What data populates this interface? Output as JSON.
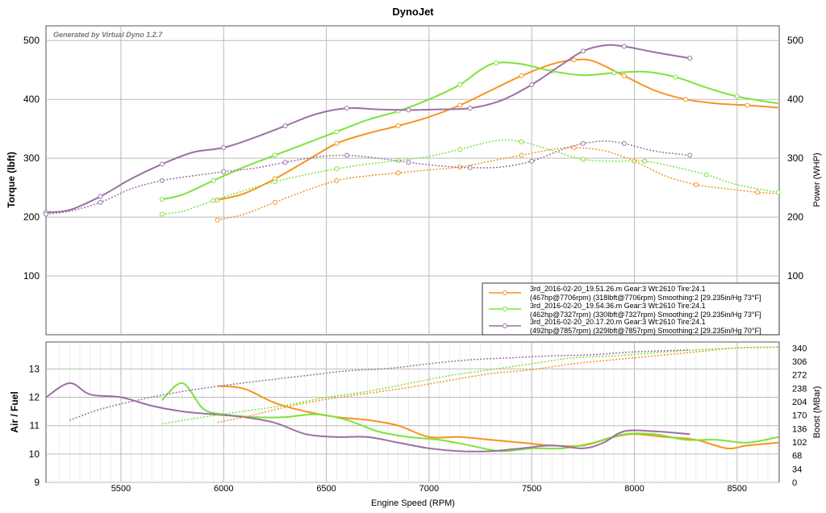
{
  "chart_data": [
    {
      "type": "line",
      "title": "DynoJet",
      "watermark": "Generated by Virtual Dyno 1.2.7",
      "xlabel": "Engine Speed (RPM)",
      "ylabel": "Torque (lbft)",
      "y2label": "Power (WHP)",
      "xlim": [
        5135,
        8705
      ],
      "ylim": [
        0,
        525
      ],
      "xticks": [
        5500,
        6000,
        6500,
        7000,
        7500,
        8000,
        8500
      ],
      "yticks": [
        100,
        200,
        300,
        400,
        500
      ],
      "legend": [
        {
          "line1": "3rd_2016-02-20_19.51.26.m Gear:3 Wt:2610 Tire:24.1",
          "line2": "(467hp@7706rpm) (318lbft@7706rpm) Smoothing:2 [29.235in/Hg 73°F]",
          "color": "#f7931e"
        },
        {
          "line1": "3rd_2016-02-20_19.54.36.m Gear:3 Wt:2610 Tire:24.1",
          "line2": "(462hp@7327rpm) (330lbft@7327rpm) Smoothing:2 [29.235in/Hg 73°F]",
          "color": "#7ee23a"
        },
        {
          "line1": "3rd_2016-02-20_20.17.20.m Gear:3 Wt:2610 Tire:24.1",
          "line2": "(492hp@7857rpm) (329lbft@7857rpm) Smoothing:2 [29.235in/Hg 70°F]",
          "color": "#9b6fa6"
        }
      ],
      "series": [
        {
          "name": "Run 1 Power",
          "color": "#f7931e",
          "dash": false,
          "points": [
            [
              5970,
              229
            ],
            [
              6100,
              240
            ],
            [
              6250,
              265
            ],
            [
              6400,
              295
            ],
            [
              6550,
              325
            ],
            [
              6700,
              342
            ],
            [
              6850,
              355
            ],
            [
              7000,
              370
            ],
            [
              7150,
              390
            ],
            [
              7300,
              415
            ],
            [
              7450,
              440
            ],
            [
              7600,
              460
            ],
            [
              7706,
              467
            ],
            [
              7800,
              465
            ],
            [
              7950,
              440
            ],
            [
              8100,
              415
            ],
            [
              8250,
              400
            ],
            [
              8400,
              393
            ],
            [
              8550,
              390
            ],
            [
              8700,
              386
            ]
          ]
        },
        {
          "name": "Run 1 Torque",
          "color": "#f7931e",
          "dash": true,
          "points": [
            [
              5970,
              195
            ],
            [
              6100,
              205
            ],
            [
              6250,
              225
            ],
            [
              6400,
              245
            ],
            [
              6550,
              262
            ],
            [
              6700,
              270
            ],
            [
              6850,
              275
            ],
            [
              7000,
              280
            ],
            [
              7150,
              285
            ],
            [
              7300,
              295
            ],
            [
              7450,
              305
            ],
            [
              7600,
              315
            ],
            [
              7706,
              318
            ],
            [
              7850,
              313
            ],
            [
              8000,
              295
            ],
            [
              8150,
              270
            ],
            [
              8300,
              255
            ],
            [
              8450,
              248
            ],
            [
              8600,
              242
            ],
            [
              8700,
              240
            ]
          ]
        },
        {
          "name": "Run 2 Power",
          "color": "#7ee23a",
          "dash": false,
          "points": [
            [
              5700,
              230
            ],
            [
              5800,
              238
            ],
            [
              5950,
              262
            ],
            [
              6100,
              285
            ],
            [
              6250,
              305
            ],
            [
              6400,
              325
            ],
            [
              6550,
              345
            ],
            [
              6700,
              365
            ],
            [
              6850,
              380
            ],
            [
              7000,
              400
            ],
            [
              7150,
              425
            ],
            [
              7250,
              450
            ],
            [
              7327,
              462
            ],
            [
              7450,
              460
            ],
            [
              7600,
              448
            ],
            [
              7750,
              441
            ],
            [
              7900,
              445
            ],
            [
              8050,
              447
            ],
            [
              8200,
              438
            ],
            [
              8350,
              420
            ],
            [
              8500,
              405
            ],
            [
              8700,
              393
            ]
          ]
        },
        {
          "name": "Run 2 Torque",
          "color": "#7ee23a",
          "dash": true,
          "points": [
            [
              5700,
              205
            ],
            [
              5800,
              210
            ],
            [
              5950,
              228
            ],
            [
              6100,
              245
            ],
            [
              6250,
              260
            ],
            [
              6400,
              272
            ],
            [
              6550,
              282
            ],
            [
              6700,
              290
            ],
            [
              6850,
              296
            ],
            [
              7000,
              303
            ],
            [
              7150,
              315
            ],
            [
              7327,
              330
            ],
            [
              7450,
              328
            ],
            [
              7600,
              313
            ],
            [
              7750,
              298
            ],
            [
              7900,
              295
            ],
            [
              8050,
              295
            ],
            [
              8200,
              285
            ],
            [
              8350,
              272
            ],
            [
              8500,
              255
            ],
            [
              8700,
              242
            ]
          ]
        },
        {
          "name": "Run 3 Power",
          "color": "#9b6fa6",
          "dash": false,
          "points": [
            [
              5135,
              208
            ],
            [
              5250,
              212
            ],
            [
              5400,
              235
            ],
            [
              5550,
              265
            ],
            [
              5700,
              290
            ],
            [
              5850,
              310
            ],
            [
              6000,
              318
            ],
            [
              6150,
              335
            ],
            [
              6300,
              355
            ],
            [
              6450,
              375
            ],
            [
              6600,
              385
            ],
            [
              6750,
              383
            ],
            [
              6900,
              382
            ],
            [
              7050,
              383
            ],
            [
              7200,
              385
            ],
            [
              7350,
              398
            ],
            [
              7500,
              425
            ],
            [
              7650,
              460
            ],
            [
              7750,
              482
            ],
            [
              7857,
              492
            ],
            [
              7950,
              490
            ],
            [
              8100,
              480
            ],
            [
              8270,
              470
            ]
          ]
        },
        {
          "name": "Run 3 Torque",
          "color": "#9b6fa6",
          "dash": true,
          "points": [
            [
              5135,
              205
            ],
            [
              5250,
              210
            ],
            [
              5400,
              225
            ],
            [
              5550,
              248
            ],
            [
              5700,
              262
            ],
            [
              5850,
              270
            ],
            [
              6000,
              277
            ],
            [
              6150,
              283
            ],
            [
              6300,
              293
            ],
            [
              6450,
              302
            ],
            [
              6600,
              305
            ],
            [
              6750,
              300
            ],
            [
              6900,
              293
            ],
            [
              7050,
              287
            ],
            [
              7200,
              284
            ],
            [
              7350,
              285
            ],
            [
              7500,
              295
            ],
            [
              7650,
              315
            ],
            [
              7750,
              325
            ],
            [
              7857,
              329
            ],
            [
              7950,
              325
            ],
            [
              8100,
              312
            ],
            [
              8270,
              305
            ]
          ]
        }
      ]
    },
    {
      "type": "line",
      "xlabel": "Engine Speed (RPM)",
      "ylabel": "Air / Fuel",
      "y2label": "Boost (MBar)",
      "xlim": [
        5135,
        8705
      ],
      "ylim": [
        9,
        13.95
      ],
      "y2lim": [
        0,
        355
      ],
      "xticks": [
        5500,
        6000,
        6500,
        7000,
        7500,
        8000,
        8500
      ],
      "yticks": [
        9,
        10,
        11,
        12,
        13
      ],
      "y2ticks": [
        0,
        34,
        68,
        102,
        136,
        170,
        204,
        238,
        272,
        306,
        340
      ],
      "series": [
        {
          "name": "Run 1 AF",
          "color": "#f7931e",
          "dash": false,
          "axis": "left",
          "points": [
            [
              5970,
              12.4
            ],
            [
              6100,
              12.3
            ],
            [
              6250,
              11.8
            ],
            [
              6400,
              11.5
            ],
            [
              6550,
              11.3
            ],
            [
              6700,
              11.2
            ],
            [
              6850,
              11.0
            ],
            [
              7000,
              10.6
            ],
            [
              7150,
              10.6
            ],
            [
              7300,
              10.5
            ],
            [
              7450,
              10.4
            ],
            [
              7600,
              10.3
            ],
            [
              7750,
              10.3
            ],
            [
              7900,
              10.6
            ],
            [
              8000,
              10.7
            ],
            [
              8150,
              10.6
            ],
            [
              8300,
              10.5
            ],
            [
              8450,
              10.2
            ],
            [
              8550,
              10.3
            ],
            [
              8700,
              10.4
            ]
          ]
        },
        {
          "name": "Run 2 AF",
          "color": "#7ee23a",
          "dash": false,
          "axis": "left",
          "points": [
            [
              5700,
              11.9
            ],
            [
              5800,
              12.5
            ],
            [
              5900,
              11.6
            ],
            [
              6000,
              11.4
            ],
            [
              6150,
              11.3
            ],
            [
              6300,
              11.3
            ],
            [
              6450,
              11.4
            ],
            [
              6600,
              11.2
            ],
            [
              6750,
              10.8
            ],
            [
              6900,
              10.6
            ],
            [
              7050,
              10.5
            ],
            [
              7200,
              10.3
            ],
            [
              7350,
              10.1
            ],
            [
              7500,
              10.2
            ],
            [
              7650,
              10.2
            ],
            [
              7800,
              10.4
            ],
            [
              7950,
              10.7
            ],
            [
              8100,
              10.7
            ],
            [
              8250,
              10.5
            ],
            [
              8400,
              10.5
            ],
            [
              8550,
              10.4
            ],
            [
              8700,
              10.6
            ]
          ]
        },
        {
          "name": "Run 3 AF",
          "color": "#9b6fa6",
          "dash": false,
          "axis": "left",
          "points": [
            [
              5135,
              12.0
            ],
            [
              5250,
              12.5
            ],
            [
              5350,
              12.1
            ],
            [
              5500,
              12.0
            ],
            [
              5650,
              11.7
            ],
            [
              5800,
              11.5
            ],
            [
              5950,
              11.4
            ],
            [
              6100,
              11.3
            ],
            [
              6250,
              11.1
            ],
            [
              6400,
              10.7
            ],
            [
              6550,
              10.6
            ],
            [
              6700,
              10.6
            ],
            [
              6850,
              10.4
            ],
            [
              7000,
              10.2
            ],
            [
              7150,
              10.1
            ],
            [
              7300,
              10.1
            ],
            [
              7450,
              10.2
            ],
            [
              7600,
              10.3
            ],
            [
              7750,
              10.2
            ],
            [
              7850,
              10.4
            ],
            [
              7950,
              10.8
            ],
            [
              8100,
              10.8
            ],
            [
              8270,
              10.7
            ]
          ]
        },
        {
          "name": "Run 1 Boost",
          "color": "#f7931e",
          "dash": true,
          "axis": "right",
          "points": [
            [
              5970,
              152
            ],
            [
              6100,
              165
            ],
            [
              6300,
              190
            ],
            [
              6500,
              210
            ],
            [
              6700,
              225
            ],
            [
              6900,
              240
            ],
            [
              7100,
              258
            ],
            [
              7300,
              275
            ],
            [
              7500,
              285
            ],
            [
              7700,
              300
            ],
            [
              7900,
              310
            ],
            [
              8100,
              320
            ],
            [
              8300,
              330
            ],
            [
              8500,
              340
            ],
            [
              8700,
              342
            ]
          ]
        },
        {
          "name": "Run 2 Boost",
          "color": "#7ee23a",
          "dash": true,
          "axis": "right",
          "points": [
            [
              5700,
              148
            ],
            [
              5900,
              165
            ],
            [
              6100,
              180
            ],
            [
              6300,
              195
            ],
            [
              6500,
              215
            ],
            [
              6700,
              230
            ],
            [
              6900,
              250
            ],
            [
              7100,
              270
            ],
            [
              7300,
              285
            ],
            [
              7500,
              300
            ],
            [
              7700,
              315
            ],
            [
              7900,
              320
            ],
            [
              8100,
              328
            ],
            [
              8300,
              335
            ],
            [
              8500,
              340
            ],
            [
              8700,
              342
            ]
          ]
        },
        {
          "name": "Run 3 Boost",
          "color": "#9b6fa6",
          "dash": true,
          "axis": "right",
          "points": [
            [
              5250,
              157
            ],
            [
              5400,
              185
            ],
            [
              5600,
              210
            ],
            [
              5800,
              230
            ],
            [
              6000,
              245
            ],
            [
              6200,
              258
            ],
            [
              6400,
              270
            ],
            [
              6600,
              282
            ],
            [
              6800,
              288
            ],
            [
              7000,
              300
            ],
            [
              7200,
              310
            ],
            [
              7400,
              315
            ],
            [
              7600,
              320
            ],
            [
              7800,
              323
            ],
            [
              8000,
              330
            ],
            [
              8270,
              335
            ]
          ]
        }
      ]
    }
  ]
}
